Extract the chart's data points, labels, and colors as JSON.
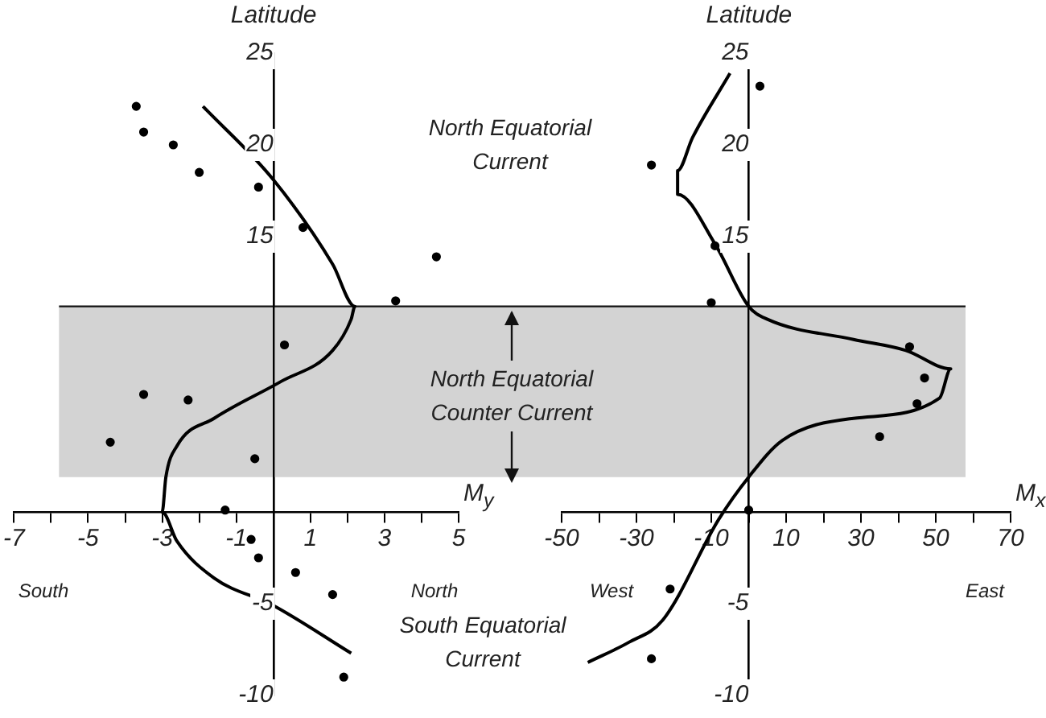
{
  "chart_data": [
    {
      "type": "scatter",
      "xlabel": "M$_{y}$",
      "ylabel": "Latitude",
      "xlim": [
        -7,
        5
      ],
      "ylim": [
        -10,
        25
      ],
      "xticks": [
        -7,
        {
          "value": -6,
          "label": null
        },
        -5,
        {
          "value": -4,
          "label": null
        },
        -3,
        {
          "value": -2,
          "label": null
        },
        -1,
        {
          "value": 0,
          "label": null
        },
        1,
        {
          "value": 2,
          "label": null
        },
        3,
        {
          "value": 4,
          "label": null
        },
        5
      ],
      "yticks": [
        -10,
        -5,
        15,
        20,
        25
      ],
      "grid": false,
      "legend": false,
      "series": [
        {
          "type": "scatter",
          "marker": "circle",
          "color": "#000000",
          "x": [
            -3.7,
            -3.5,
            -2.7,
            -2.0,
            -0.4,
            0.8,
            4.4,
            3.3,
            0.3,
            -3.5,
            -2.3,
            -4.4,
            -0.5,
            -1.3,
            -0.6,
            -0.4,
            0.6,
            1.6,
            1.9
          ],
          "values": [
            22.1,
            20.7,
            20.0,
            18.5,
            17.7,
            15.5,
            13.9,
            11.5,
            9.1,
            6.4,
            6.1,
            3.8,
            2.9,
            0.1,
            -1.5,
            -2.5,
            -3.3,
            -4.5,
            -9.0
          ]
        },
        {
          "type": "line",
          "marker": "none",
          "color": "#000000",
          "x": [
            -1.9,
            0,
            1.6,
            2.2,
            2.1,
            1.6,
            0.2,
            -1.6,
            -2.6,
            -2.9,
            -3.0,
            -2.6,
            -1.6,
            0,
            2.1
          ],
          "values": [
            22.1,
            18.1,
            13.5,
            11.2,
            10.5,
            8.8,
            7.1,
            5.1,
            3.6,
            1.9,
            0,
            -1.6,
            -3.6,
            -5.1,
            -7.7
          ]
        }
      ],
      "bands": [
        {
          "axis": "y",
          "from": 1.9,
          "to": 11.2,
          "color": "#d3d3d3"
        }
      ],
      "ref_lines": [
        {
          "axis": "y",
          "value": 11.2,
          "color": "#111111"
        }
      ],
      "annotations": [
        "South",
        "North",
        "North Equatorial Current",
        "North Equatorial Counter Current",
        "South Equatorial Current"
      ]
    },
    {
      "type": "scatter",
      "xlabel": "M$_{x}$",
      "ylabel": "Latitude",
      "xlim": [
        -50,
        70
      ],
      "ylim": [
        -10,
        25
      ],
      "xticks": [
        -50,
        {
          "value": -40,
          "label": null
        },
        -30,
        {
          "value": -20,
          "label": null
        },
        -10,
        {
          "value": 0,
          "label": null
        },
        10,
        {
          "value": 20,
          "label": null
        },
        30,
        {
          "value": 40,
          "label": null
        },
        50,
        {
          "value": 60,
          "label": null
        },
        70
      ],
      "yticks": [
        -10,
        -5,
        15,
        20,
        25
      ],
      "grid": false,
      "legend": false,
      "series": [
        {
          "type": "scatter",
          "marker": "circle",
          "color": "#000000",
          "x": [
            3,
            -26,
            -9,
            -10,
            43,
            47,
            45,
            35,
            0,
            -21,
            -26
          ],
          "values": [
            23.2,
            18.9,
            14.5,
            11.4,
            9.0,
            7.3,
            5.9,
            4.1,
            0.1,
            -4.2,
            -8.0
          ]
        },
        {
          "type": "line",
          "marker": "none",
          "color": "#000000",
          "x": [
            -5,
            -15,
            -19,
            -19,
            -9,
            0,
            5,
            28,
            42,
            54,
            51,
            28,
            9,
            0,
            -8,
            -23,
            -32,
            -43
          ],
          "values": [
            23.9,
            20.4,
            18.6,
            17.3,
            14.6,
            11.2,
            10.5,
            9.4,
            8.8,
            7.8,
            6.2,
            5.1,
            3.9,
            1.9,
            -0.4,
            -5.9,
            -7.1,
            -8.2
          ]
        }
      ],
      "bands": [
        {
          "axis": "y",
          "from": 1.9,
          "to": 11.2,
          "color": "#d3d3d3"
        }
      ],
      "ref_lines": [
        {
          "axis": "y",
          "value": 11.2,
          "color": "#111111"
        }
      ],
      "annotations": [
        "West",
        "East"
      ]
    }
  ]
}
